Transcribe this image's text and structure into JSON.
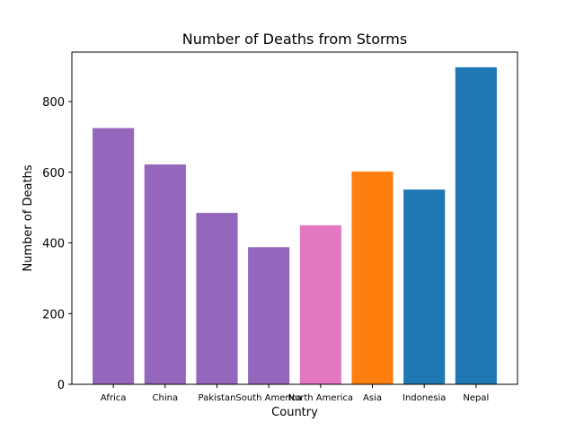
{
  "chart_data": {
    "type": "bar",
    "title": "Number of Deaths from Storms",
    "xlabel": "Country",
    "ylabel": "Number of Deaths",
    "categories": [
      "Africa",
      "China",
      "Pakistan",
      "South America",
      "North America",
      "Asia",
      "Indonesia",
      "Nepal"
    ],
    "values": [
      725,
      622,
      485,
      388,
      450,
      602,
      551,
      897
    ],
    "colors": [
      "#9467bd",
      "#9467bd",
      "#9467bd",
      "#9467bd",
      "#e377c2",
      "#ff7f0e",
      "#1f77b4",
      "#1f77b4"
    ],
    "ylim": [
      0,
      940
    ],
    "yticks": [
      0,
      200,
      400,
      600,
      800
    ],
    "ytick_labels": [
      "0",
      "200",
      "400",
      "600",
      "800"
    ],
    "grid": false,
    "legend": false
  }
}
